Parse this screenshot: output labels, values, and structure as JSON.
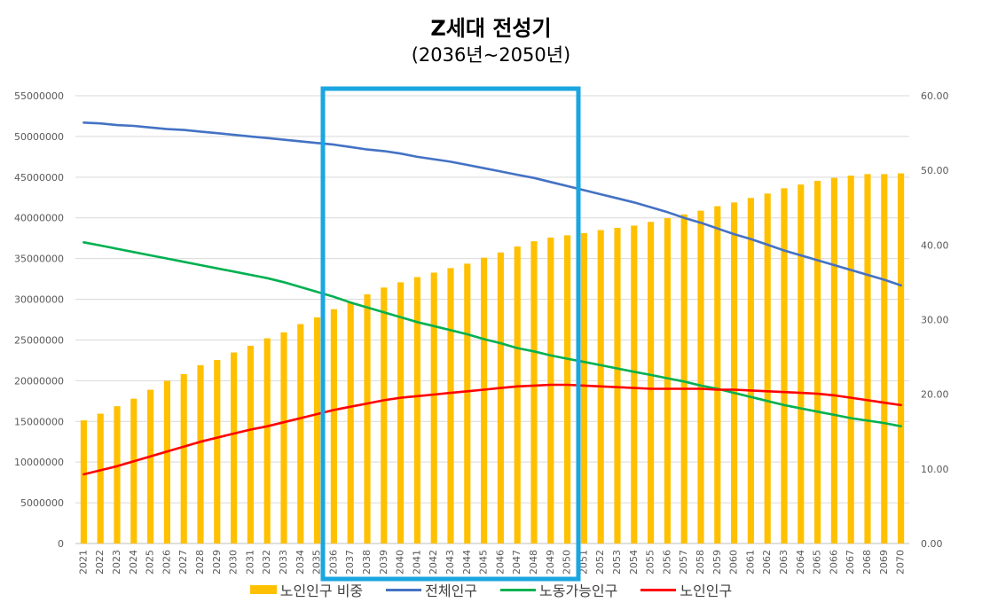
{
  "chart_data": {
    "type": "bar+line",
    "title": "Z세대 전성기",
    "subtitle": "(2036년~2050년)",
    "categories": [
      "2021",
      "2022",
      "2023",
      "2024",
      "2025",
      "2026",
      "2027",
      "2028",
      "2029",
      "2030",
      "2031",
      "2032",
      "2033",
      "2034",
      "2035",
      "2036",
      "2037",
      "2038",
      "2039",
      "2040",
      "2041",
      "2042",
      "2043",
      "2044",
      "2045",
      "2046",
      "2047",
      "2048",
      "2049",
      "2050",
      "2051",
      "2052",
      "2053",
      "2054",
      "2055",
      "2056",
      "2057",
      "2058",
      "2059",
      "2060",
      "2061",
      "2062",
      "2063",
      "2064",
      "2065",
      "2066",
      "2067",
      "2068",
      "2069",
      "2070"
    ],
    "left_axis": {
      "ylim": [
        0,
        55000000
      ],
      "ticks": [
        "0",
        "5000000",
        "10000000",
        "15000000",
        "20000000",
        "25000000",
        "30000000",
        "35000000",
        "40000000",
        "45000000",
        "50000000",
        "55000000"
      ]
    },
    "right_axis": {
      "ylim": [
        0,
        60
      ],
      "ticks": [
        "0.00",
        "10.00",
        "20.00",
        "30.00",
        "40.00",
        "50.00",
        "60.00"
      ]
    },
    "series": [
      {
        "name": "노인인구 비중",
        "type": "bar",
        "axis": "right",
        "color": "#FFC000",
        "values": [
          16.5,
          17.4,
          18.4,
          19.4,
          20.6,
          21.8,
          22.7,
          23.9,
          24.6,
          25.6,
          26.5,
          27.5,
          28.3,
          29.4,
          30.3,
          31.4,
          32.3,
          33.4,
          34.3,
          35.0,
          35.7,
          36.3,
          36.9,
          37.5,
          38.3,
          39.0,
          39.8,
          40.5,
          41.0,
          41.3,
          41.6,
          42.0,
          42.3,
          42.6,
          43.1,
          43.6,
          44.1,
          44.6,
          45.2,
          45.7,
          46.3,
          46.9,
          47.6,
          48.1,
          48.6,
          49.0,
          49.3,
          49.5,
          49.5,
          49.6
        ]
      },
      {
        "name": "전체인구",
        "type": "line",
        "axis": "left",
        "color": "#4472C4",
        "values": [
          51700000,
          51600000,
          51400000,
          51300000,
          51100000,
          50900000,
          50800000,
          50600000,
          50400000,
          50200000,
          50000000,
          49800000,
          49600000,
          49400000,
          49200000,
          49000000,
          48700000,
          48400000,
          48200000,
          47900000,
          47500000,
          47200000,
          46900000,
          46500000,
          46100000,
          45700000,
          45300000,
          44900000,
          44400000,
          43900000,
          43400000,
          42900000,
          42400000,
          41900000,
          41300000,
          40700000,
          40000000,
          39400000,
          38700000,
          38000000,
          37400000,
          36700000,
          36000000,
          35400000,
          34800000,
          34200000,
          33600000,
          33000000,
          32400000,
          31700000
        ]
      },
      {
        "name": "노동가능인구",
        "type": "line",
        "axis": "left",
        "color": "#00B050",
        "values": [
          37000000,
          36600000,
          36200000,
          35800000,
          35400000,
          35000000,
          34600000,
          34200000,
          33800000,
          33400000,
          33000000,
          32600000,
          32100000,
          31500000,
          30900000,
          30300000,
          29600000,
          29000000,
          28400000,
          27800000,
          27200000,
          26700000,
          26200000,
          25700000,
          25100000,
          24600000,
          24000000,
          23600000,
          23100000,
          22700000,
          22300000,
          21900000,
          21500000,
          21100000,
          20700000,
          20300000,
          19900000,
          19400000,
          19000000,
          18500000,
          18000000,
          17500000,
          17000000,
          16600000,
          16200000,
          15800000,
          15400000,
          15100000,
          14800000,
          14400000
        ]
      },
      {
        "name": "노인인구",
        "type": "line",
        "axis": "left",
        "color": "#FF0000",
        "values": [
          8500000,
          9000000,
          9500000,
          10100000,
          10700000,
          11300000,
          11900000,
          12500000,
          13000000,
          13500000,
          14000000,
          14400000,
          14900000,
          15400000,
          15900000,
          16400000,
          16800000,
          17200000,
          17600000,
          17900000,
          18100000,
          18300000,
          18500000,
          18700000,
          18900000,
          19100000,
          19300000,
          19400000,
          19500000,
          19500000,
          19400000,
          19300000,
          19200000,
          19100000,
          19000000,
          19000000,
          19000000,
          19000000,
          18900000,
          18900000,
          18800000,
          18700000,
          18600000,
          18500000,
          18400000,
          18200000,
          17900000,
          17600000,
          17300000,
          17000000
        ]
      }
    ],
    "highlight_range": [
      "2036",
      "2050"
    ],
    "highlight_color": "#1AA6E0",
    "legend_position": "bottom",
    "grid": true
  }
}
